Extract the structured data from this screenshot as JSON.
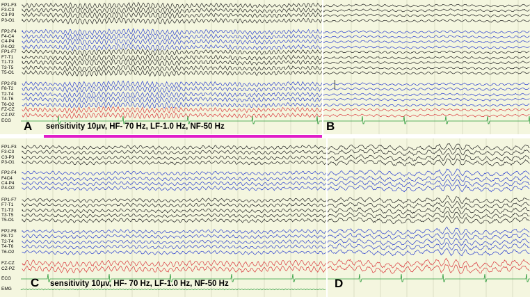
{
  "colors": {
    "background": "#f4f6df",
    "grid": "#c9cdb6",
    "black_trace": "#222222",
    "blue_trace": "#2b3fcf",
    "red_trace": "#d9363b",
    "green_trace": "#2a9a3a",
    "divider": "#e01ec8"
  },
  "top": {
    "channels": [
      "FP1-F3",
      "F3-C3",
      "C3-P3",
      "P3-O1",
      "FP2-F4",
      "F4-C4",
      "C4-P4",
      "P4-O2",
      "FP1-F7",
      "F7-T1",
      "T1-T3",
      "T3-T5",
      "T5-O1",
      "FP2-F8",
      "F8-T2",
      "T2-T4",
      "T4-T6",
      "T6-O2",
      "FZ-CZ",
      "CZ-PZ",
      "ECG"
    ],
    "left_letter": "A",
    "right_letter": "B",
    "caption": "sensitivity 10μv, HF- 70 Hz, LF-1.0 Hz, NF-50 Hz"
  },
  "bottom": {
    "channels": [
      "FP1-F3",
      "F3-C3",
      "C3-P3",
      "P3-O1",
      "FP2-F4",
      "F4C4",
      "C4-P4",
      "P4-O2",
      "FP1-F7",
      "F7-T1",
      "T1-T3",
      "T3-T5",
      "T5-O1",
      "FP2-F8",
      "F8-T2",
      "T2-T4",
      "T4-T6",
      "T6-O2",
      "FZ-CZ",
      "CZ-PZ",
      "ECG",
      "EMG"
    ],
    "left_letter": "C",
    "right_letter": "D",
    "caption": "sensitivity 10μv, HF- 70 Hz, LF-1.0 Hz, NF-50 Hz"
  }
}
